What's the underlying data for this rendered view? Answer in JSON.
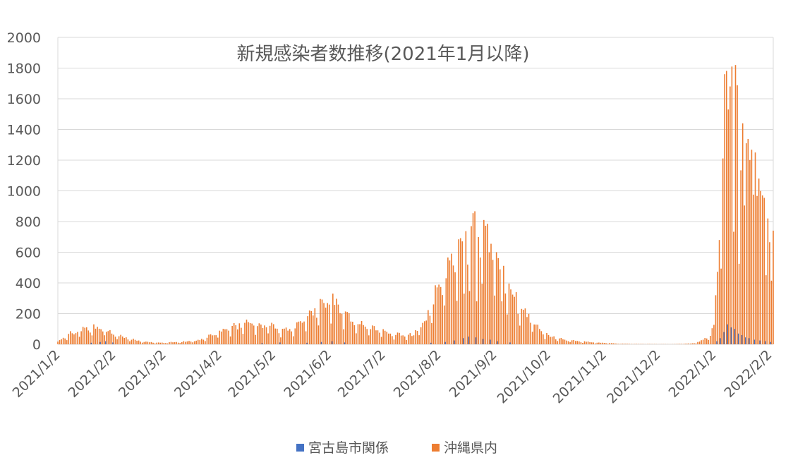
{
  "chart_data": {
    "type": "bar",
    "title": "新規感染者数推移(2021年1月以降)",
    "xlabel": "",
    "ylabel": "",
    "ylim": [
      0,
      2000
    ],
    "y_ticks": [
      0,
      200,
      400,
      600,
      800,
      1000,
      1200,
      1400,
      1600,
      1800,
      2000
    ],
    "x_tick_labels": [
      "2021/1/2",
      "2021/2/2",
      "2021/3/2",
      "2021/4/2",
      "2021/5/2",
      "2021/6/2",
      "2021/7/2",
      "2021/8/2",
      "2021/9/2",
      "2021/10/2",
      "2021/11/2",
      "2021/12/2",
      "2022/1/2",
      "2022/2/2"
    ],
    "x_start": "2021/1/2",
    "x_end": "2022/2/4",
    "grid": "horizontal",
    "legend_position": "bottom",
    "series": [
      {
        "name": "宮古島市関係",
        "color": "#4472C4",
        "points": [
          [
            "2021/1/20",
            10
          ],
          [
            "2021/1/25",
            15
          ],
          [
            "2021/1/28",
            20
          ],
          [
            "2021/2/1",
            12
          ],
          [
            "2021/4/25",
            8
          ],
          [
            "2021/5/5",
            12
          ],
          [
            "2021/5/20",
            10
          ],
          [
            "2021/5/28",
            15
          ],
          [
            "2021/6/3",
            20
          ],
          [
            "2021/6/10",
            12
          ],
          [
            "2021/7/28",
            10
          ],
          [
            "2021/8/5",
            15
          ],
          [
            "2021/8/10",
            25
          ],
          [
            "2021/8/15",
            40
          ],
          [
            "2021/8/18",
            50
          ],
          [
            "2021/8/22",
            45
          ],
          [
            "2021/8/26",
            35
          ],
          [
            "2021/8/30",
            30
          ],
          [
            "2021/9/3",
            20
          ],
          [
            "2021/9/10",
            12
          ],
          [
            "2022/1/3",
            20
          ],
          [
            "2022/1/5",
            40
          ],
          [
            "2022/1/7",
            80
          ],
          [
            "2022/1/9",
            130
          ],
          [
            "2022/1/11",
            110
          ],
          [
            "2022/1/13",
            100
          ],
          [
            "2022/1/15",
            70
          ],
          [
            "2022/1/17",
            60
          ],
          [
            "2022/1/19",
            45
          ],
          [
            "2022/1/21",
            40
          ],
          [
            "2022/1/24",
            30
          ],
          [
            "2022/1/27",
            25
          ],
          [
            "2022/1/30",
            20
          ],
          [
            "2022/2/2",
            15
          ]
        ]
      },
      {
        "name": "沖縄県内",
        "color": "#ED7D31",
        "anchors": [
          [
            "2021/1/2",
            15
          ],
          [
            "2021/1/8",
            60
          ],
          [
            "2021/1/15",
            95
          ],
          [
            "2021/1/22",
            100
          ],
          [
            "2021/1/28",
            95
          ],
          [
            "2021/2/5",
            55
          ],
          [
            "2021/2/12",
            30
          ],
          [
            "2021/2/20",
            15
          ],
          [
            "2021/3/1",
            10
          ],
          [
            "2021/3/12",
            15
          ],
          [
            "2021/3/22",
            25
          ],
          [
            "2021/4/1",
            70
          ],
          [
            "2021/4/10",
            110
          ],
          [
            "2021/4/20",
            130
          ],
          [
            "2021/4/30",
            115
          ],
          [
            "2021/5/8",
            85
          ],
          [
            "2021/5/15",
            110
          ],
          [
            "2021/5/22",
            190
          ],
          [
            "2021/5/30",
            270
          ],
          [
            "2021/6/5",
            260
          ],
          [
            "2021/6/12",
            180
          ],
          [
            "2021/6/20",
            120
          ],
          [
            "2021/7/1",
            85
          ],
          [
            "2021/7/10",
            60
          ],
          [
            "2021/7/18",
            55
          ],
          [
            "2021/7/25",
            140
          ],
          [
            "2021/7/31",
            310
          ],
          [
            "2021/8/6",
            450
          ],
          [
            "2021/8/12",
            600
          ],
          [
            "2021/8/18",
            700
          ],
          [
            "2021/8/25",
            720
          ],
          [
            "2021/8/31",
            650
          ],
          [
            "2021/9/6",
            470
          ],
          [
            "2021/9/12",
            330
          ],
          [
            "2021/9/18",
            220
          ],
          [
            "2021/9/25",
            120
          ],
          [
            "2021/10/2",
            55
          ],
          [
            "2021/10/10",
            28
          ],
          [
            "2021/10/20",
            18
          ],
          [
            "2021/10/31",
            10
          ],
          [
            "2021/11/10",
            4
          ],
          [
            "2021/11/20",
            2
          ],
          [
            "2021/12/10",
            1
          ],
          [
            "2021/12/20",
            5
          ],
          [
            "2021/12/25",
            15
          ],
          [
            "2021/12/31",
            55
          ],
          [
            "2022/1/2",
            120
          ],
          [
            "2022/1/5",
            700
          ],
          [
            "2022/1/8",
            1350
          ],
          [
            "2022/1/11",
            1550
          ],
          [
            "2022/1/14",
            1400
          ],
          [
            "2022/1/18",
            1250
          ],
          [
            "2022/1/22",
            1150
          ],
          [
            "2022/1/26",
            1000
          ],
          [
            "2022/1/30",
            800
          ],
          [
            "2022/2/4",
            700
          ]
        ],
        "spikes": [
          [
            "2021/1/22",
            130
          ],
          [
            "2021/8/27",
            810
          ],
          [
            "2021/8/20",
            770
          ],
          [
            "2021/9/3",
            600
          ],
          [
            "2021/6/4",
            330
          ],
          [
            "2022/1/8",
            1760
          ],
          [
            "2022/1/10",
            1530
          ],
          [
            "2022/1/12",
            1810
          ],
          [
            "2022/1/14",
            1820
          ],
          [
            "2022/1/18",
            1440
          ],
          [
            "2022/1/20",
            1310
          ],
          [
            "2022/1/25",
            1250
          ],
          [
            "2022/1/27",
            1080
          ],
          [
            "2022/1/29",
            970
          ]
        ],
        "dips": [
          [
            "2022/1/16",
            525
          ],
          [
            "2022/1/31",
            450
          ],
          [
            "2021/9/6",
            280
          ],
          [
            "2021/8/23",
            280
          ],
          [
            "2021/8/16",
            330
          ]
        ]
      }
    ]
  }
}
